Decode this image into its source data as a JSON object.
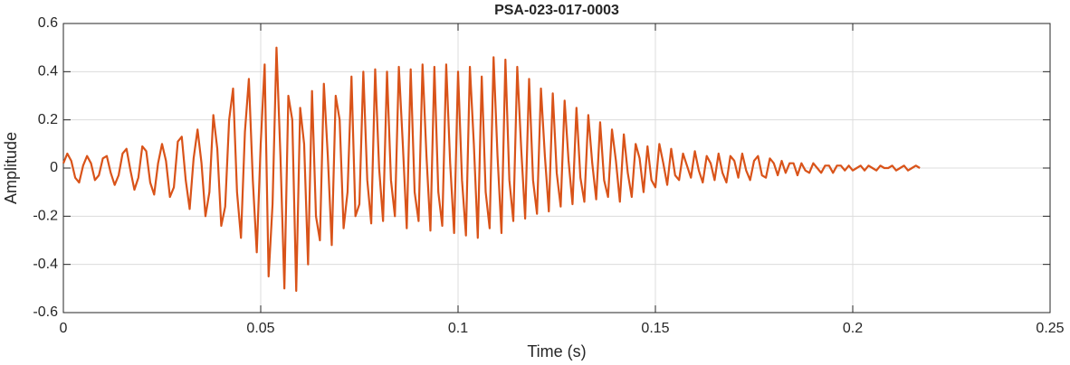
{
  "chart_data": {
    "type": "line",
    "title": "PSA-023-017-0003",
    "xlabel": "Time (s)",
    "ylabel": "Amplitude",
    "color": "#d95319",
    "grid": true,
    "xlim": [
      0,
      0.25
    ],
    "xticks": [
      0,
      0.05,
      0.1,
      0.15,
      0.2,
      0.25
    ],
    "ylim": [
      -0.6,
      0.6
    ],
    "yticks": [
      -0.6,
      -0.4,
      -0.2,
      0,
      0.2,
      0.4,
      0.6
    ],
    "x": [
      0,
      0.001,
      0.002,
      0.003,
      0.004,
      0.005,
      0.006,
      0.007,
      0.008,
      0.009,
      0.01,
      0.011,
      0.012,
      0.013,
      0.014,
      0.015,
      0.016,
      0.017,
      0.018,
      0.019,
      0.02,
      0.021,
      0.022,
      0.023,
      0.024,
      0.025,
      0.026,
      0.027,
      0.028,
      0.029,
      0.03,
      0.031,
      0.032,
      0.033,
      0.034,
      0.035,
      0.036,
      0.037,
      0.038,
      0.039,
      0.04,
      0.041,
      0.042,
      0.043,
      0.044,
      0.045,
      0.046,
      0.047,
      0.048,
      0.049,
      0.05,
      0.051,
      0.052,
      0.053,
      0.054,
      0.055,
      0.056,
      0.057,
      0.058,
      0.059,
      0.06,
      0.061,
      0.062,
      0.063,
      0.064,
      0.065,
      0.066,
      0.067,
      0.068,
      0.069,
      0.07,
      0.071,
      0.072,
      0.073,
      0.074,
      0.075,
      0.076,
      0.077,
      0.078,
      0.079,
      0.08,
      0.081,
      0.082,
      0.083,
      0.084,
      0.085,
      0.086,
      0.087,
      0.088,
      0.089,
      0.09,
      0.091,
      0.092,
      0.093,
      0.094,
      0.095,
      0.096,
      0.097,
      0.098,
      0.099,
      0.1,
      0.101,
      0.102,
      0.103,
      0.104,
      0.105,
      0.106,
      0.107,
      0.108,
      0.109,
      0.11,
      0.111,
      0.112,
      0.113,
      0.114,
      0.115,
      0.116,
      0.117,
      0.118,
      0.119,
      0.12,
      0.121,
      0.122,
      0.123,
      0.124,
      0.125,
      0.126,
      0.127,
      0.128,
      0.129,
      0.13,
      0.131,
      0.132,
      0.133,
      0.134,
      0.135,
      0.136,
      0.137,
      0.138,
      0.139,
      0.14,
      0.141,
      0.142,
      0.143,
      0.144,
      0.145,
      0.146,
      0.147,
      0.148,
      0.149,
      0.15,
      0.151,
      0.152,
      0.153,
      0.154,
      0.155,
      0.156,
      0.157,
      0.158,
      0.159,
      0.16,
      0.161,
      0.162,
      0.163,
      0.164,
      0.165,
      0.166,
      0.167,
      0.168,
      0.169,
      0.17,
      0.171,
      0.172,
      0.173,
      0.174,
      0.175,
      0.176,
      0.177,
      0.178,
      0.179,
      0.18,
      0.181,
      0.182,
      0.183,
      0.184,
      0.185,
      0.186,
      0.187,
      0.188,
      0.189,
      0.19,
      0.191,
      0.192,
      0.193,
      0.194,
      0.195,
      0.196,
      0.197,
      0.198,
      0.199,
      0.2,
      0.201,
      0.202,
      0.203,
      0.204,
      0.205,
      0.206,
      0.207,
      0.208,
      0.209,
      0.21,
      0.211,
      0.212,
      0.213,
      0.214,
      0.215,
      0.216,
      0.217
    ],
    "values": [
      0.02,
      0.06,
      0.03,
      -0.04,
      -0.06,
      0.01,
      0.05,
      0.02,
      -0.05,
      -0.03,
      0.04,
      0.05,
      -0.02,
      -0.07,
      -0.03,
      0.06,
      0.08,
      -0.01,
      -0.09,
      -0.04,
      0.09,
      0.07,
      -0.06,
      -0.11,
      0.02,
      0.1,
      0.03,
      -0.12,
      -0.08,
      0.11,
      0.13,
      -0.05,
      -0.17,
      0.04,
      0.16,
      0.02,
      -0.2,
      -0.1,
      0.22,
      0.08,
      -0.24,
      -0.16,
      0.2,
      0.33,
      -0.1,
      -0.29,
      0.15,
      0.37,
      -0.05,
      -0.35,
      0.1,
      0.43,
      -0.45,
      -0.15,
      0.5,
      0.05,
      -0.5,
      0.3,
      0.2,
      -0.51,
      0.25,
      0.1,
      -0.4,
      0.32,
      -0.2,
      -0.3,
      0.35,
      0.05,
      -0.32,
      0.3,
      0.2,
      -0.25,
      -0.1,
      0.38,
      -0.2,
      -0.15,
      0.4,
      -0.05,
      -0.23,
      0.41,
      0,
      -0.22,
      0.4,
      -0.05,
      -0.2,
      0.42,
      0.1,
      -0.25,
      0.41,
      -0.1,
      -0.22,
      0.43,
      0.05,
      -0.26,
      0.42,
      -0.1,
      -0.24,
      0.43,
      0.02,
      -0.27,
      0.4,
      -0.05,
      -0.28,
      0.42,
      0.1,
      -0.29,
      0.38,
      -0.1,
      -0.25,
      0.46,
      0.05,
      -0.27,
      0.45,
      -0.05,
      -0.22,
      0.42,
      0.08,
      -0.21,
      0.37,
      -0.05,
      -0.19,
      0.33,
      0.05,
      -0.18,
      0.31,
      -0.02,
      -0.16,
      0.28,
      0.03,
      -0.15,
      0.25,
      -0.04,
      -0.14,
      0.22,
      0.02,
      -0.13,
      0.19,
      -0.05,
      -0.12,
      0.16,
      0.03,
      -0.14,
      0.14,
      -0.02,
      -0.12,
      0.1,
      0.04,
      -0.1,
      0.09,
      -0.05,
      -0.08,
      0.1,
      0.02,
      -0.07,
      0.08,
      -0.03,
      -0.05,
      0.06,
      0.01,
      -0.04,
      0.07,
      -0.01,
      -0.06,
      0.05,
      0.02,
      -0.05,
      0.06,
      -0.02,
      -0.06,
      0.05,
      0.03,
      -0.04,
      0.06,
      -0.01,
      -0.05,
      0.03,
      0.05,
      -0.03,
      -0.04,
      0.04,
      0.02,
      -0.03,
      0.03,
      -0.02,
      0.02,
      0.02,
      -0.03,
      0.02,
      -0.01,
      -0.02,
      0.02,
      0,
      -0.02,
      0.01,
      0.01,
      -0.02,
      0.01,
      0.01,
      -0.01,
      0.01,
      -0.01,
      0,
      0.01,
      -0.01,
      0.01,
      0,
      -0.01,
      0.01,
      0,
      0,
      0.01,
      -0.01,
      0,
      0.01,
      -0.01,
      0,
      0.01,
      0
    ]
  }
}
